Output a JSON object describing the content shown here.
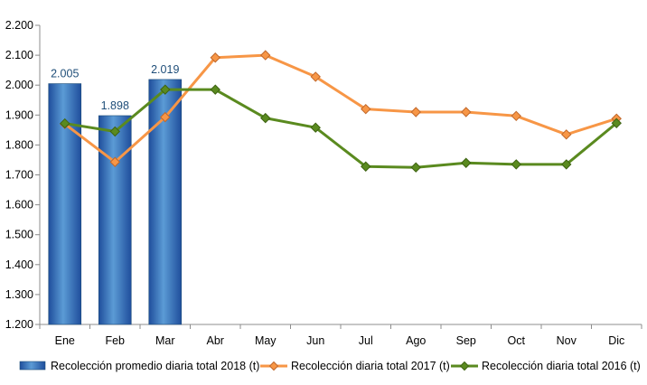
{
  "chart_data": {
    "type": "bar",
    "categories": [
      "Ene",
      "Feb",
      "Mar",
      "Abr",
      "May",
      "Jun",
      "Jul",
      "Ago",
      "Sep",
      "Oct",
      "Nov",
      "Dic"
    ],
    "ylim": [
      1200,
      2200
    ],
    "yticks": [
      1200,
      1300,
      1400,
      1500,
      1600,
      1700,
      1800,
      1900,
      2000,
      2100,
      2200
    ],
    "ytick_labels": [
      "1.200",
      "1.300",
      "1.400",
      "1.500",
      "1.600",
      "1.700",
      "1.800",
      "1.900",
      "2.000",
      "2.100",
      "2.200"
    ],
    "grid": false,
    "legend_position": "bottom",
    "series": [
      {
        "name": "Recolección promedio diaria total 2018 (t)",
        "type": "bar",
        "color": "#2e6fc5",
        "values": [
          2005,
          1898,
          2019,
          null,
          null,
          null,
          null,
          null,
          null,
          null,
          null,
          null
        ],
        "data_labels": [
          "2.005",
          "1.898",
          "2.019"
        ]
      },
      {
        "name": "Recolección diaria total 2017 (t)",
        "type": "line",
        "color": "#f79646",
        "marker": "diamond",
        "values": [
          1870,
          1743,
          1893,
          2092,
          2100,
          2028,
          1920,
          1910,
          1910,
          1897,
          1835,
          1888
        ]
      },
      {
        "name": "Recolección diaria total 2016 (t)",
        "type": "line",
        "color": "#5a8a1f",
        "marker": "diamond",
        "values": [
          1872,
          1845,
          1985,
          1985,
          1890,
          1858,
          1728,
          1725,
          1740,
          1735,
          1735,
          1873
        ]
      }
    ]
  }
}
